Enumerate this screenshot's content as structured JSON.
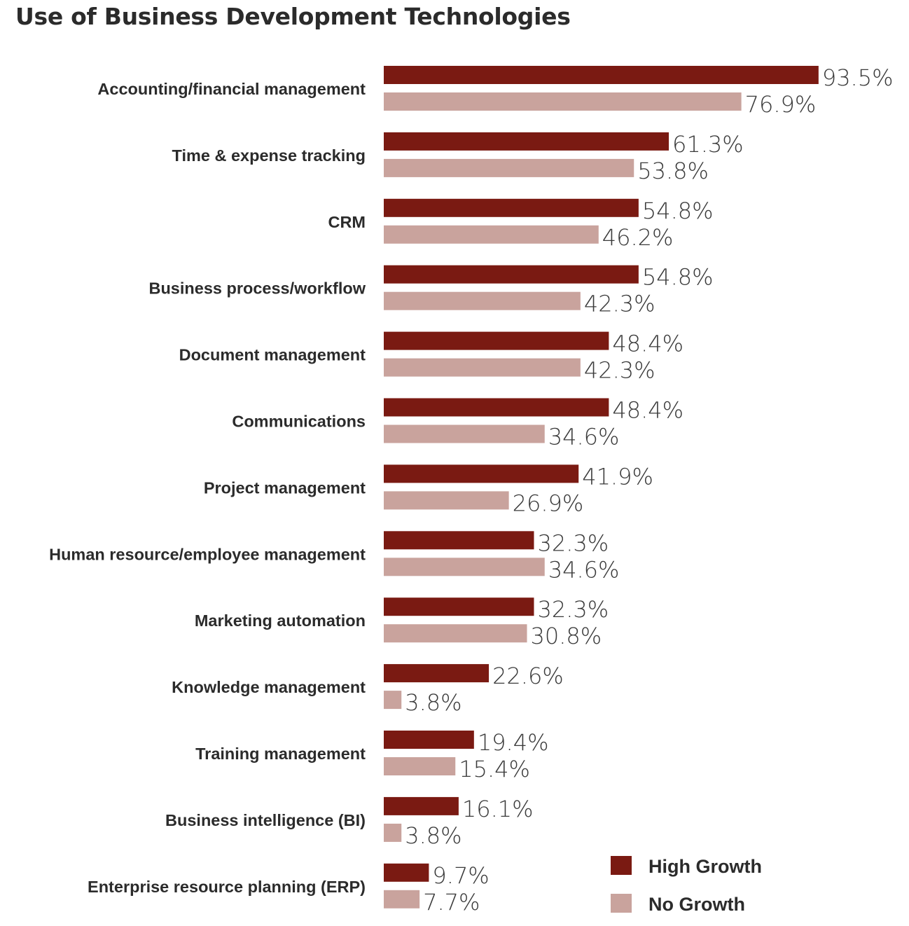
{
  "chart_data": {
    "type": "bar",
    "orientation": "horizontal",
    "title": "Use of Business Development Technologies",
    "categories": [
      "Accounting/financial management",
      "Time & expense tracking",
      "CRM",
      "Business process/workflow",
      "Document management",
      "Communications",
      "Project management",
      "Human resource/employee management",
      "Marketing automation",
      "Knowledge management",
      "Training management",
      "Business intelligence (BI)",
      "Enterprise resource planning (ERP)"
    ],
    "series": [
      {
        "name": "High Growth",
        "color": "#7a1a12",
        "values": [
          93.5,
          61.3,
          54.8,
          54.8,
          48.4,
          48.4,
          41.9,
          32.3,
          32.3,
          22.6,
          19.4,
          16.1,
          9.7
        ],
        "labels": [
          "93.5%",
          "61.3%",
          "54.8%",
          "54.8%",
          "48.4%",
          "48.4%",
          "41.9%",
          "32.3%",
          "32.3%",
          "22.6%",
          "19.4%",
          "16.1%",
          "9.7%"
        ]
      },
      {
        "name": "No Growth",
        "color": "#c9a39d",
        "values": [
          76.9,
          53.8,
          46.2,
          42.3,
          42.3,
          34.6,
          26.9,
          34.6,
          30.8,
          3.8,
          15.4,
          3.8,
          7.7
        ],
        "labels": [
          "76.9%",
          "53.8%",
          "46.2%",
          "42.3%",
          "42.3%",
          "34.6%",
          "26.9%",
          "34.6%",
          "30.8%",
          "3.8%",
          "15.4%",
          "3.8%",
          "7.7%"
        ]
      }
    ],
    "xlim": [
      0,
      100
    ],
    "grid": false,
    "legend_position": "bottom-right",
    "axis_lines": false
  }
}
